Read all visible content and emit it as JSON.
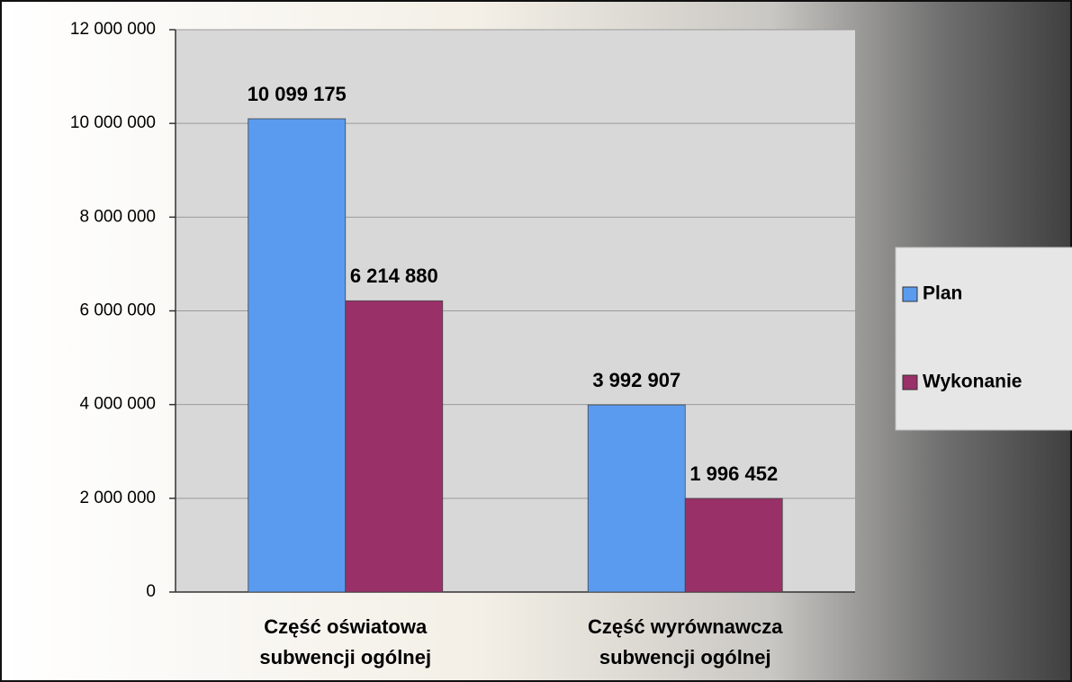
{
  "chart_data": {
    "type": "bar",
    "categories": [
      "Część oświatowa subwencji ogólnej",
      "Część wyrównawcza subwencji ogólnej"
    ],
    "series": [
      {
        "name": "Plan",
        "color": "#5a9bf0",
        "values": [
          10099175,
          3992907
        ],
        "value_labels": [
          "10 099 175",
          "3 992 907"
        ]
      },
      {
        "name": "Wykonanie",
        "color": "#993068",
        "values": [
          6214880,
          1996452
        ],
        "value_labels": [
          "6 214 880",
          "1 996 452"
        ]
      }
    ],
    "ylim": [
      0,
      12000000
    ],
    "yticks": [
      0,
      {
        "value": 2000000,
        "label": "2 000 000"
      },
      {
        "value": 4000000,
        "label": "4 000 000"
      },
      {
        "value": 6000000,
        "label": "6 000 000"
      },
      {
        "value": 8000000,
        "label": "8 000 000"
      },
      {
        "value": 10000000,
        "label": "10 000 000"
      },
      {
        "value": 12000000,
        "label": "12 000 000"
      }
    ],
    "grid": true,
    "legend": "right"
  }
}
